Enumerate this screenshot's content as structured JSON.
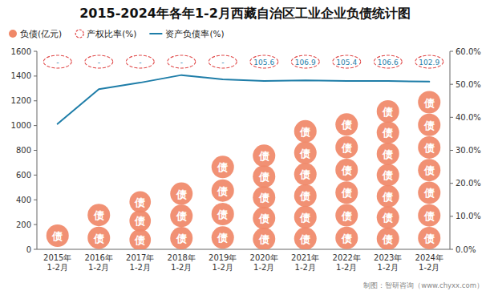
{
  "chart_data": {
    "type": "bar",
    "title": "2015-2024年各年1-2月西藏自治区工业企业负债统计图",
    "categories": [
      "2015年\n1-2月",
      "2016年\n1-2月",
      "2017年\n1-2月",
      "2018年\n1-2月",
      "2019年\n1-2月",
      "2020年\n1-2月",
      "2021年\n1-2月",
      "2022年\n1-2月",
      "2023年\n1-2月",
      "2024年\n1-2月"
    ],
    "series": [
      {
        "name": "负债(亿元)",
        "type": "bar",
        "marker": "circle",
        "marker_text": "债",
        "color": "#F08868",
        "values": [
          220,
          370,
          460,
          540,
          760,
          840,
          1040,
          1100,
          1200,
          1280
        ]
      },
      {
        "name": "产权比率(%)",
        "type": "label",
        "color": "#E04848",
        "label_color": "#1E7DA8",
        "line_style": "dashed",
        "values": [
          null,
          null,
          null,
          null,
          null,
          105.6,
          106.9,
          105.4,
          106.6,
          102.9
        ],
        "value_labels": [
          "-",
          "-",
          "-",
          "-",
          "-",
          "105.6",
          "106.9",
          "105.4",
          "106.6",
          "102.9"
        ],
        "data_labels": true
      },
      {
        "name": "资产负债率(%)",
        "type": "line",
        "axis": "y2",
        "color": "#1E7DA8",
        "values": [
          38.0,
          48.5,
          50.5,
          52.8,
          51.5,
          51.0,
          51.2,
          51.0,
          51.0,
          50.8
        ]
      }
    ],
    "ylim": [
      0,
      1600
    ],
    "yticks": [
      0,
      200,
      400,
      600,
      800,
      1000,
      1200,
      1400,
      1600
    ],
    "y2lim": [
      0.0,
      60.0
    ],
    "y2ticks": [
      {
        "value": 0.0,
        "label": "0.0%"
      },
      {
        "value": 10.0,
        "label": "10.0%"
      },
      {
        "value": 20.0,
        "label": "20.0%"
      },
      {
        "value": 30.0,
        "label": "30.0%"
      },
      {
        "value": 40.0,
        "label": "40.0%"
      },
      {
        "value": 50.0,
        "label": "50.0%"
      },
      {
        "value": 60.0,
        "label": "60.0%"
      }
    ],
    "grid": false,
    "legend": "upper left",
    "footer": "制图：智研咨询（www.chyxx.com）"
  }
}
